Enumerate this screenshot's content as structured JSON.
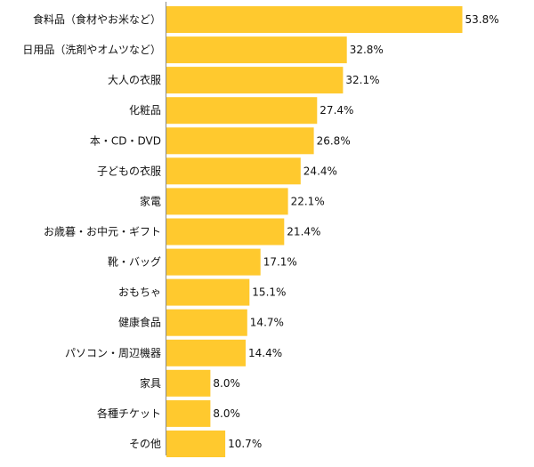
{
  "colors": {
    "bar": "#FFC92E",
    "axis": "#8a8a8a",
    "text": "#111111",
    "background": "#ffffff"
  },
  "chart_data": {
    "type": "bar",
    "orientation": "horizontal",
    "categories": [
      "食料品（食材やお米など）",
      "日用品（洗剤やオムツなど）",
      "大人の衣服",
      "化粧品",
      "本・CD・DVD",
      "子どもの衣服",
      "家電",
      "お歳暮・お中元・ギフト",
      "靴・バッグ",
      "おもちゃ",
      "健康食品",
      "パソコン・周辺機器",
      "家具",
      "各種チケット",
      "その他"
    ],
    "values": [
      53.8,
      32.8,
      32.1,
      27.4,
      26.8,
      24.4,
      22.1,
      21.4,
      17.1,
      15.1,
      14.7,
      14.4,
      8.0,
      8.0,
      10.7
    ],
    "value_labels": [
      "53.8%",
      "32.8%",
      "32.1%",
      "27.4%",
      "26.8%",
      "24.4%",
      "22.1%",
      "21.4%",
      "17.1%",
      "15.1%",
      "14.7%",
      "14.4%",
      "8.0%",
      "8.0%",
      "10.7%"
    ],
    "unit": "%",
    "xlim": [
      0,
      100
    ],
    "grid": false,
    "legend": "none"
  }
}
